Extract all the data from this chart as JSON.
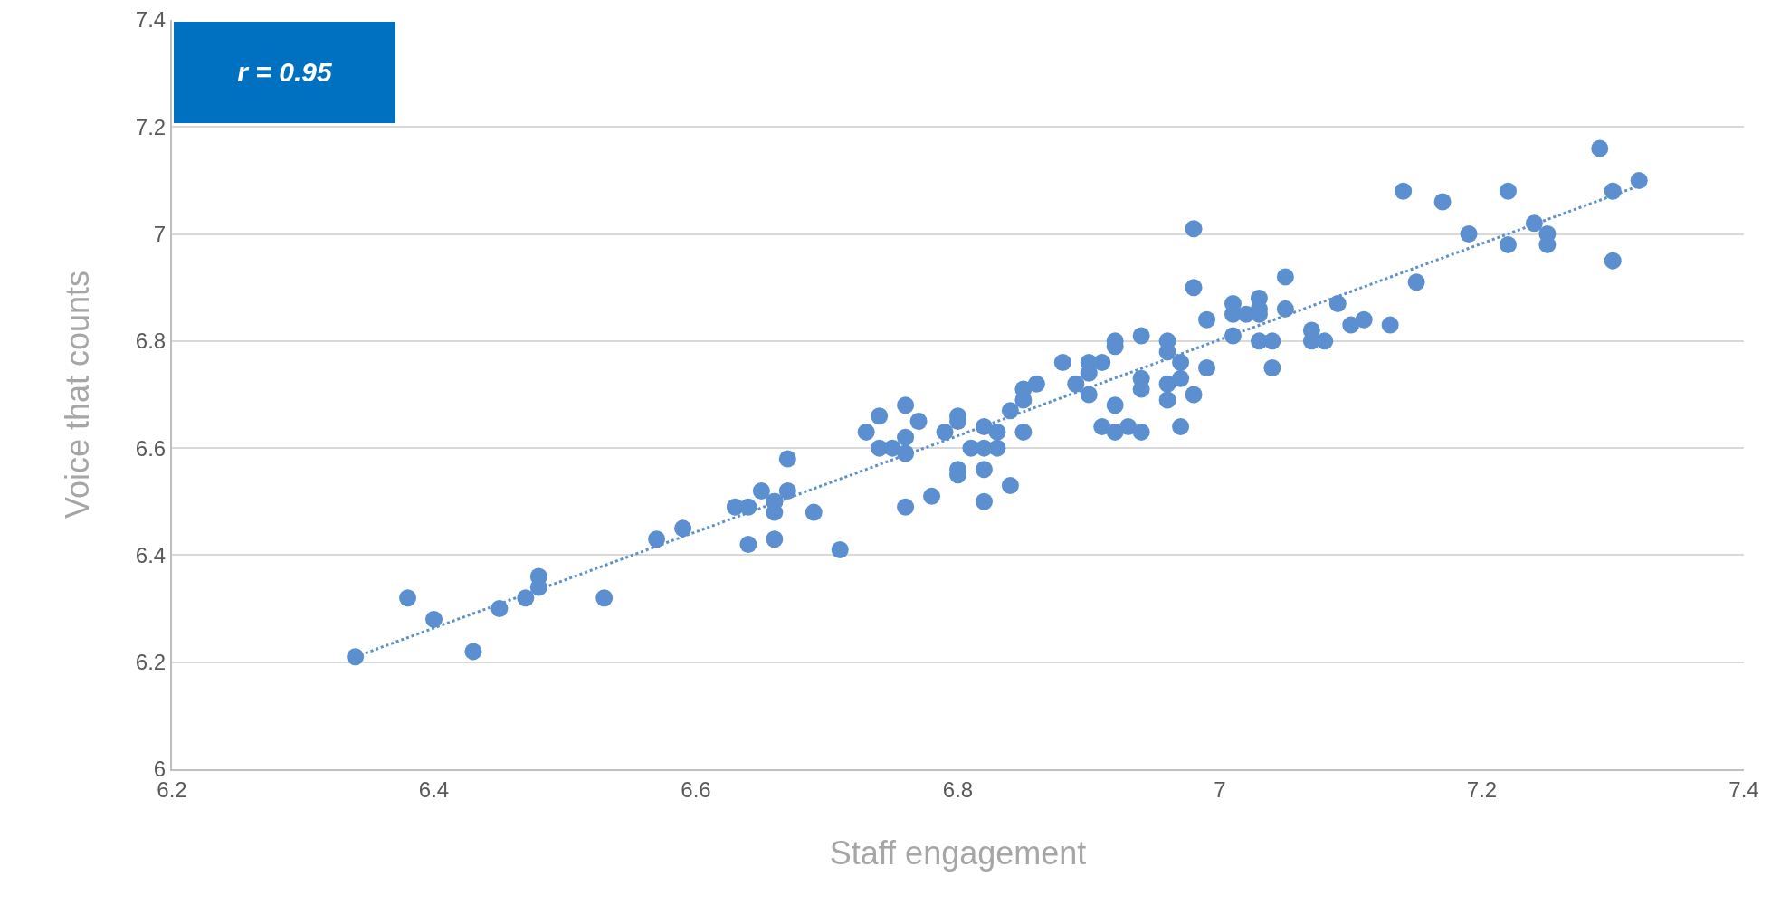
{
  "chart_data": {
    "type": "scatter",
    "xlabel": "Staff engagement",
    "ylabel": "Voice that counts",
    "annotations": [
      "r = 0.95"
    ],
    "xlim": [
      6.2,
      7.4
    ],
    "xticks": [
      6.2,
      6.4,
      6.6,
      6.8,
      7,
      7.2,
      7.4
    ],
    "ylim": [
      6,
      7.4
    ],
    "yticks": [
      6,
      6.2,
      6.4,
      6.6,
      6.8,
      7,
      7.2,
      7.4
    ],
    "grid": "y",
    "legend": false,
    "series": [
      {
        "marker": "circle",
        "color": "#5b8fd0",
        "x": [
          6.34,
          6.38,
          6.4,
          6.43,
          6.45,
          6.47,
          6.48,
          6.48,
          6.53,
          6.57,
          6.59,
          6.63,
          6.64,
          6.64,
          6.65,
          6.66,
          6.66,
          6.66,
          6.66,
          6.67,
          6.69,
          6.67,
          6.71,
          6.73,
          6.74,
          6.74,
          6.75,
          6.76,
          6.76,
          6.76,
          6.76,
          6.77,
          6.78,
          6.79,
          6.8,
          6.8,
          6.8,
          6.8,
          6.81,
          6.82,
          6.82,
          6.82,
          6.82,
          6.83,
          6.83,
          6.84,
          6.84,
          6.85,
          6.85,
          6.85,
          6.86,
          6.88,
          6.89,
          6.9,
          6.9,
          6.9,
          6.91,
          6.92,
          6.92,
          6.91,
          6.92,
          6.92,
          6.93,
          6.94,
          6.94,
          6.94,
          6.94,
          6.96,
          6.96,
          6.96,
          6.96,
          6.97,
          6.97,
          6.97,
          6.98,
          6.98,
          6.98,
          6.99,
          6.99,
          7.01,
          7.01,
          7.01,
          7.02,
          7.03,
          7.03,
          7.03,
          7.03,
          7.04,
          7.04,
          7.05,
          7.05,
          7.07,
          7.07,
          7.08,
          7.09,
          7.1,
          7.11,
          7.13,
          7.14,
          7.15,
          7.17,
          7.19,
          7.22,
          7.22,
          7.24,
          7.25,
          7.25,
          7.29,
          7.3,
          7.32,
          7.3
        ],
        "values": [
          6.21,
          6.32,
          6.28,
          6.22,
          6.3,
          6.32,
          6.36,
          6.34,
          6.32,
          6.43,
          6.45,
          6.49,
          6.42,
          6.49,
          6.52,
          6.5,
          6.48,
          6.43,
          6.5,
          6.52,
          6.48,
          6.58,
          6.41,
          6.63,
          6.6,
          6.66,
          6.6,
          6.62,
          6.49,
          6.68,
          6.59,
          6.65,
          6.51,
          6.63,
          6.66,
          6.65,
          6.56,
          6.55,
          6.6,
          6.64,
          6.6,
          6.56,
          6.5,
          6.6,
          6.63,
          6.67,
          6.53,
          6.63,
          6.69,
          6.71,
          6.72,
          6.76,
          6.72,
          6.74,
          6.76,
          6.7,
          6.76,
          6.8,
          6.68,
          6.64,
          6.79,
          6.63,
          6.64,
          6.71,
          6.81,
          6.73,
          6.63,
          6.69,
          6.72,
          6.78,
          6.8,
          6.64,
          6.76,
          6.73,
          6.7,
          7.01,
          6.9,
          6.84,
          6.75,
          6.85,
          6.87,
          6.81,
          6.85,
          6.88,
          6.8,
          6.86,
          6.85,
          6.8,
          6.75,
          6.92,
          6.86,
          6.8,
          6.82,
          6.8,
          6.87,
          6.83,
          6.84,
          6.83,
          7.08,
          6.91,
          7.06,
          7.0,
          7.08,
          6.98,
          7.02,
          7.0,
          6.98,
          7.16,
          7.08,
          7.1,
          6.95
        ]
      },
      {
        "type": "line",
        "line_style": "dotted",
        "marker": "none",
        "color": "#5b8fd0",
        "x": [
          6.34,
          7.32
        ],
        "values": [
          6.21,
          7.09
        ]
      }
    ]
  }
}
